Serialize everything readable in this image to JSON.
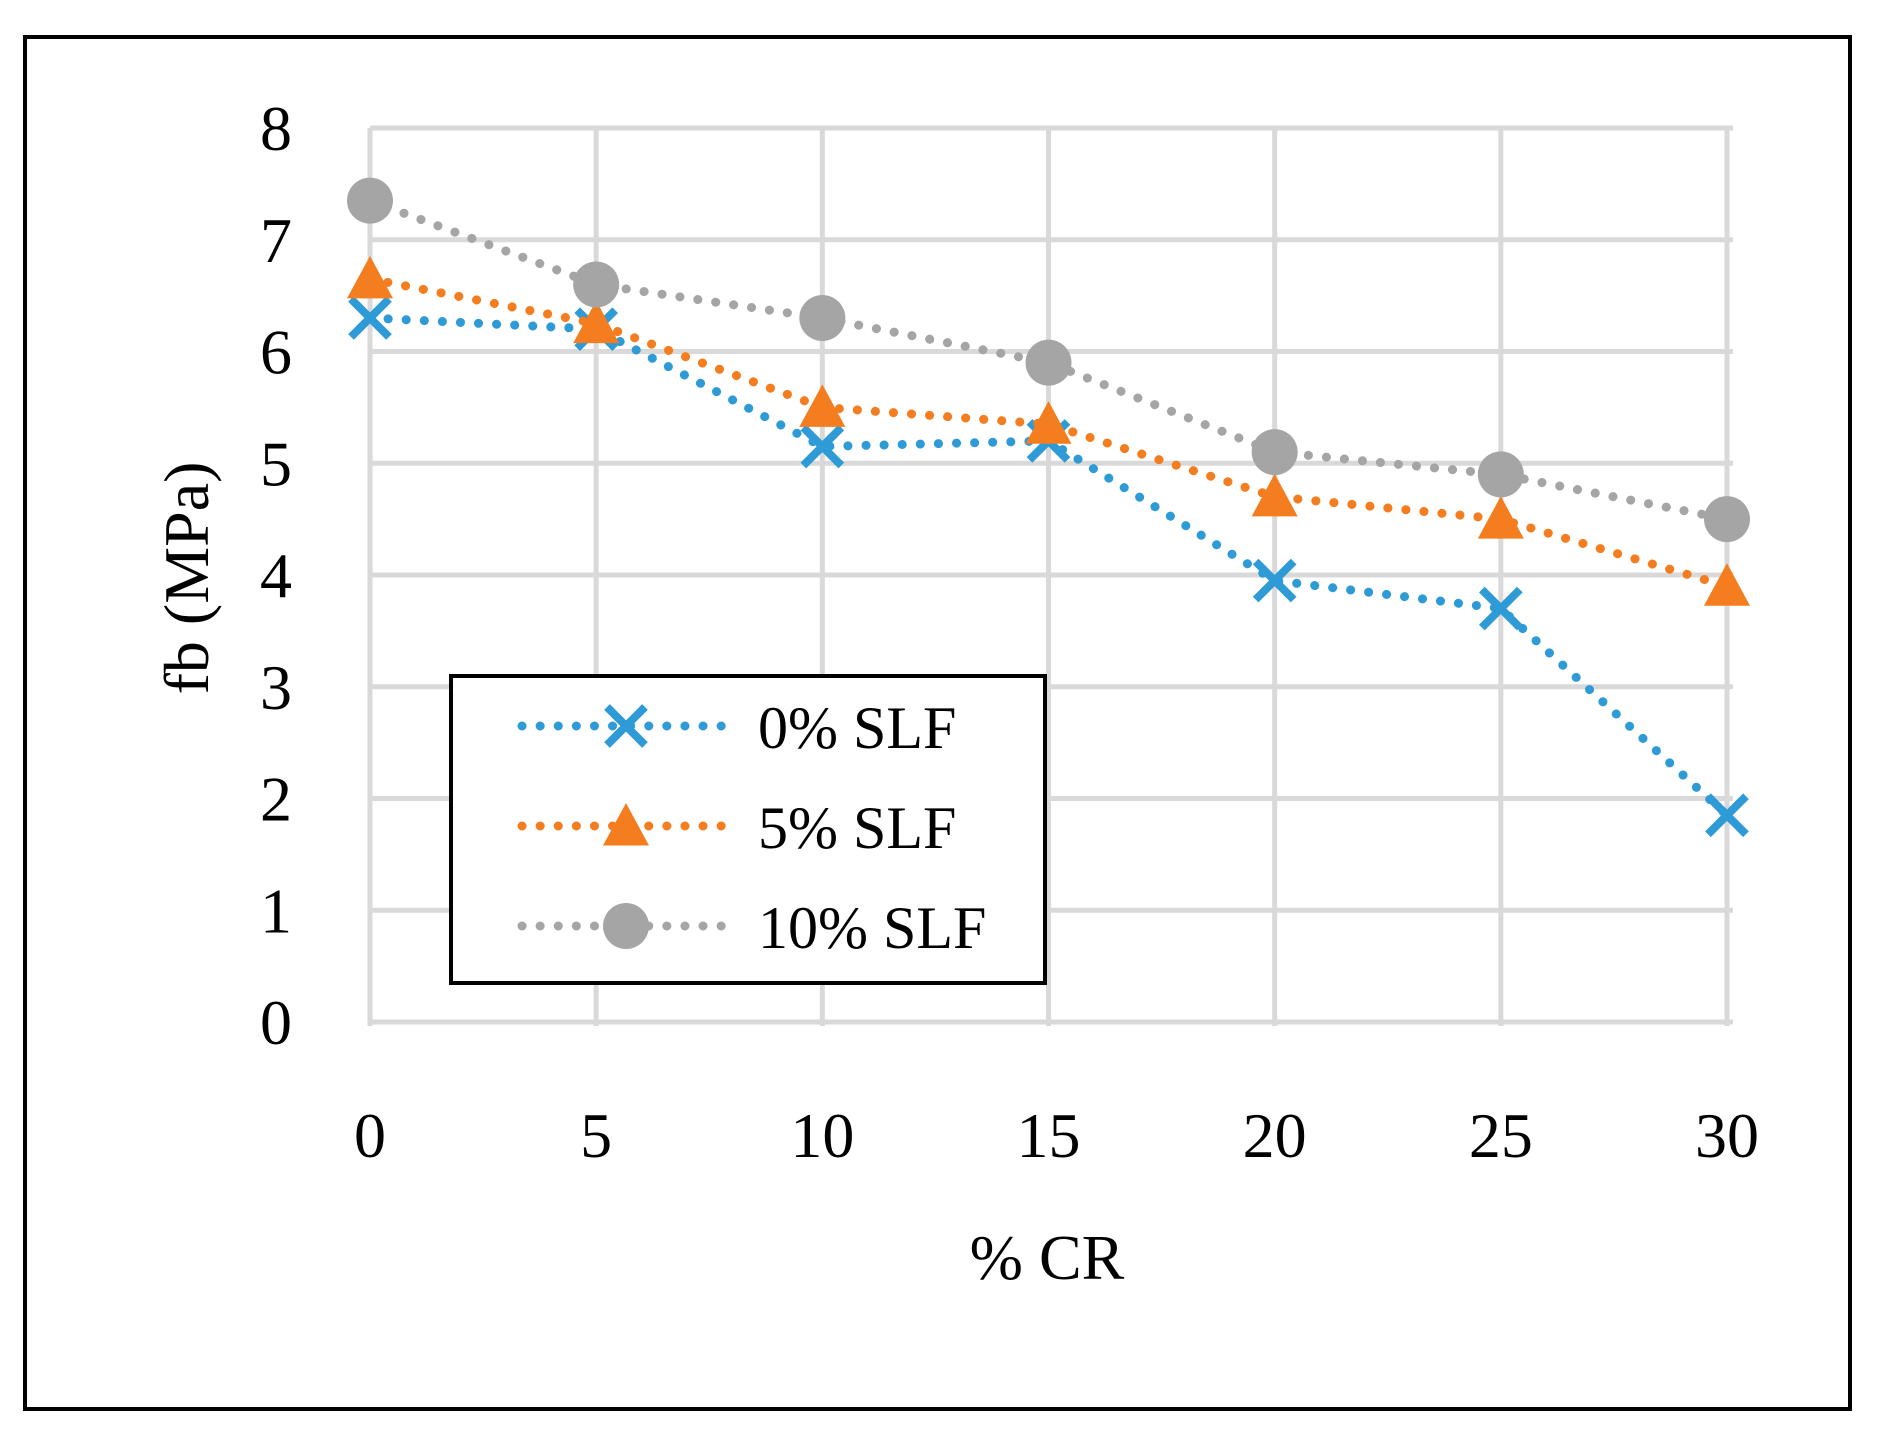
{
  "chart_data": {
    "type": "line",
    "title": "",
    "xlabel": "% CR",
    "ylabel": "fb (MPa)",
    "categories": [
      "0",
      "5",
      "10",
      "15",
      "20",
      "25",
      "30"
    ],
    "x": [
      0,
      5,
      10,
      15,
      20,
      25,
      30
    ],
    "xlim": [
      0,
      30
    ],
    "ylim": [
      0,
      8
    ],
    "yticks": [
      "0",
      "1",
      "2",
      "3",
      "4",
      "5",
      "6",
      "7",
      "8"
    ],
    "grid": true,
    "legend_position": "lower-left inside plot",
    "series": [
      {
        "name": "0% SLF",
        "marker": "x",
        "color": "#2e9bd6",
        "values": [
          6.3,
          6.2,
          5.15,
          5.2,
          3.95,
          3.7,
          1.85
        ]
      },
      {
        "name": "5% SLF",
        "marker": "triangle",
        "color": "#f47d1f",
        "values": [
          6.65,
          6.25,
          5.5,
          5.35,
          4.7,
          4.5,
          3.9
        ]
      },
      {
        "name": "10% SLF",
        "marker": "circle",
        "color": "#a5a5a5",
        "values": [
          7.35,
          6.6,
          6.3,
          5.9,
          5.1,
          4.9,
          4.5
        ]
      }
    ]
  }
}
